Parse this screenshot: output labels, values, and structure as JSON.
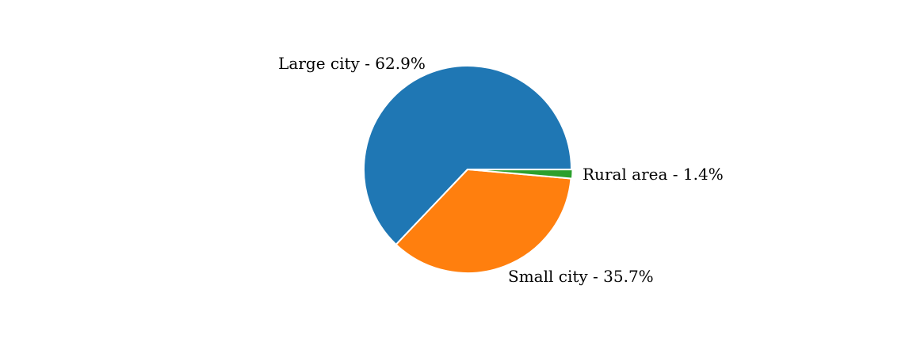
{
  "chart_data": {
    "type": "pie",
    "slices": [
      {
        "label": "Large city  -  62.9%",
        "category": "Large city",
        "value": 62.9,
        "color": "#1f77b4"
      },
      {
        "label": "Small city  -  35.7%",
        "category": "Small city",
        "value": 35.7,
        "color": "#ff7f0e"
      },
      {
        "label": "Rural area  -  1.4%",
        "category": "Rural area",
        "value": 1.4,
        "color": "#2ca02c"
      }
    ],
    "start_angle_deg": 0,
    "direction": "counterclockwise",
    "legend": false
  }
}
